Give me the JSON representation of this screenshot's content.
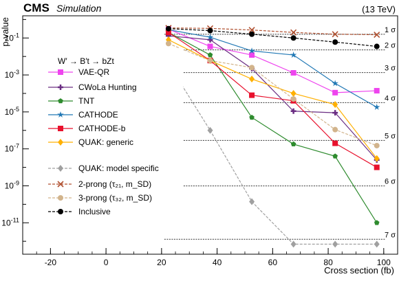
{
  "header": {
    "experiment": "CMS",
    "qualifier": "Simulation",
    "energy": "(13 TeV)"
  },
  "chart_data": {
    "type": "line",
    "title": "",
    "xlabel": "Cross section (fb)",
    "ylabel": "p-value",
    "xlim": [
      -30,
      105
    ],
    "ylim_log10": [
      -12.7,
      0.2
    ],
    "y_scale": "log",
    "x_ticks": [
      {
        "value": -20,
        "label": "-20"
      },
      {
        "value": 0,
        "label": "0"
      },
      {
        "value": 20,
        "label": "20"
      },
      {
        "value": 40,
        "label": "40"
      },
      {
        "value": 60,
        "label": "60"
      },
      {
        "value": 80,
        "label": "80"
      },
      {
        "value": 100,
        "label": "100"
      }
    ],
    "y_ticks": [
      {
        "exp": -1,
        "label": "10",
        "sup": "-1"
      },
      {
        "exp": -3,
        "label": "10",
        "sup": "-3"
      },
      {
        "exp": -5,
        "label": "10",
        "sup": "-5"
      },
      {
        "exp": -7,
        "label": "10",
        "sup": "-7"
      },
      {
        "exp": -9,
        "label": "10",
        "sup": "-9"
      },
      {
        "exp": -11,
        "label": "10",
        "sup": "-11"
      }
    ],
    "legend_title": "W′ → B′t → bZt",
    "legend_position": "upper-left inside",
    "sigma_lines": [
      {
        "label": "1 σ",
        "p": 0.1587
      },
      {
        "label": "2 σ",
        "p": 0.02275
      },
      {
        "label": "3 σ",
        "p": 0.00135
      },
      {
        "label": "4 σ",
        "p": 3.17e-05
      },
      {
        "label": "5 σ",
        "p": 2.87e-07
      },
      {
        "label": "6 σ",
        "p": 9.87e-10
      },
      {
        "label": "7 σ",
        "p": 1.28e-12
      }
    ],
    "series": [
      {
        "name": "VAE-QR",
        "color": "#ee44ee",
        "marker": "square",
        "dash": "solid",
        "x": [
          22.5,
          37.5,
          52.5,
          67.5,
          82.5,
          97.5
        ],
        "y": [
          0.3,
          0.035,
          0.012,
          0.0013,
          0.00011,
          0.00014
        ]
      },
      {
        "name": "CWoLa Hunting",
        "color": "#6a2d82",
        "marker": "plus",
        "dash": "solid",
        "x": [
          22.5,
          37.5,
          52.5,
          67.5,
          82.5,
          97.5
        ],
        "y": [
          0.13,
          0.08,
          0.0022,
          1.1e-05,
          9e-06,
          2.5e-08
        ]
      },
      {
        "name": "TNT",
        "color": "#2e8b2e",
        "marker": "pentagon",
        "dash": "solid",
        "x": [
          22.5,
          37.5,
          52.5,
          67.5,
          82.5,
          97.5
        ],
        "y": [
          0.2,
          0.012,
          5e-06,
          1.8e-07,
          4e-08,
          1e-11
        ]
      },
      {
        "name": "CATHODE",
        "color": "#1f77b4",
        "marker": "star",
        "dash": "solid",
        "x": [
          22.5,
          37.5,
          52.5,
          67.5,
          82.5,
          97.5
        ],
        "y": [
          0.28,
          0.11,
          0.02,
          0.012,
          0.00035,
          1.8e-05
        ]
      },
      {
        "name": "CATHODE-b",
        "color": "#e8112d",
        "marker": "square",
        "dash": "solid",
        "x": [
          22.5,
          37.5,
          52.5,
          67.5,
          82.5,
          97.5
        ],
        "y": [
          0.2,
          0.006,
          8e-05,
          4e-05,
          2e-07,
          1e-08
        ]
      },
      {
        "name": "QUAK: generic",
        "color": "#ffb000",
        "marker": "diamond",
        "dash": "solid",
        "x": [
          22.5,
          37.5,
          52.5,
          67.5,
          82.5,
          97.5
        ],
        "y": [
          0.08,
          0.006,
          0.0006,
          0.0001,
          2.5e-05,
          3e-08
        ]
      },
      {
        "name": "QUAK: model specific",
        "color": "#a0a0a0",
        "marker": "diamond",
        "dash": "dashed",
        "x": [
          22.5,
          37.5,
          52.5,
          67.5,
          82.5,
          97.5
        ],
        "y": [
          0.004,
          1e-06,
          1.4e-10,
          7e-13,
          7e-13,
          7e-13
        ]
      },
      {
        "name": "2-prong (τ₂₁, m_SD)",
        "color": "#b05030",
        "marker": "x",
        "dash": "dashed",
        "x": [
          22.5,
          37.5,
          52.5,
          67.5,
          82.5,
          97.5
        ],
        "y": [
          0.35,
          0.33,
          0.27,
          0.2,
          0.16,
          0.15
        ]
      },
      {
        "name": "3-prong (τ₃₂, m_SD)",
        "color": "#d2b48c",
        "marker": "circle",
        "dash": "dashed",
        "x": [
          22.5,
          37.5,
          52.5,
          67.5,
          82.5,
          97.5
        ],
        "y": [
          0.05,
          0.006,
          0.0025,
          5e-05,
          1.1e-06,
          1.5e-07
        ]
      },
      {
        "name": "Inclusive",
        "color": "#000000",
        "marker": "circle",
        "dash": "dashed",
        "x": [
          22.5,
          37.5,
          52.5,
          67.5,
          82.5,
          97.5
        ],
        "y": [
          0.32,
          0.25,
          0.16,
          0.1,
          0.06,
          0.035
        ]
      }
    ]
  }
}
